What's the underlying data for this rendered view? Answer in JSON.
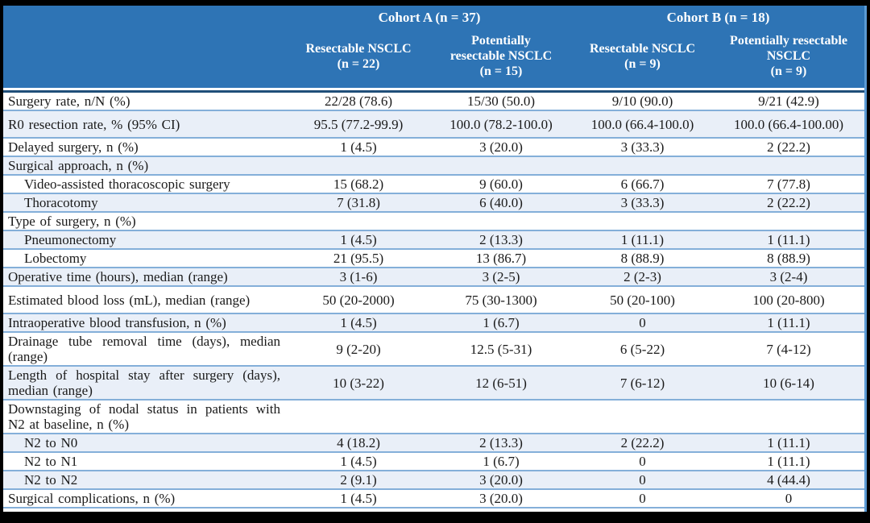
{
  "colors": {
    "frame": "#000000",
    "header_bg": "#2E74B5",
    "header_text": "#FFFFFF",
    "navy_rule": "#1F4E79",
    "divider": "#84AFD9",
    "stripe": "#E9EFF8",
    "row_white": "#FFFFFF",
    "body_text": "#1A1A1A",
    "right_border": "#5B9BD5"
  },
  "table": {
    "header": {
      "cohort_a": "Cohort A (n = 37)",
      "cohort_b": "Cohort B (n = 18)",
      "columns": [
        "Resectable NSCLC\n(n = 22)",
        "Potentially\nresectable NSCLC\n(n = 15)",
        "Resectable NSCLC\n(n = 9)",
        "Potentially resectable\nNSCLC\n(n = 9)"
      ]
    },
    "rows": [
      {
        "label": "Surgery rate, n/N (%)",
        "indent": false,
        "values": [
          "22/28 (78.6)",
          "15/30 (50.0)",
          "9/10 (90.0)",
          "9/21 (42.9)"
        ]
      },
      {
        "label": "R0 resection rate, % (95% CI)",
        "indent": false,
        "values": [
          "95.5 (77.2-99.9)",
          "100.0 (78.2-100.0)",
          "100.0 (66.4-100.0)",
          "100.0 (66.4-100.00)"
        ]
      },
      {
        "label": "Delayed surgery, n (%)",
        "indent": false,
        "values": [
          "1 (4.5)",
          "3 (20.0)",
          "3 (33.3)",
          "2 (22.2)"
        ]
      },
      {
        "label": "Surgical approach, n (%)",
        "indent": false,
        "values": [
          "",
          "",
          "",
          ""
        ]
      },
      {
        "label": "Video-assisted thoracoscopic surgery",
        "indent": true,
        "values": [
          "15 (68.2)",
          "9 (60.0)",
          "6 (66.7)",
          "7 (77.8)"
        ]
      },
      {
        "label": "Thoracotomy",
        "indent": true,
        "values": [
          "7 (31.8)",
          "6 (40.0)",
          "3 (33.3)",
          "2 (22.2)"
        ]
      },
      {
        "label": "Type of surgery, n (%)",
        "indent": false,
        "values": [
          "",
          "",
          "",
          ""
        ]
      },
      {
        "label": "Pneumonectomy",
        "indent": true,
        "values": [
          "1 (4.5)",
          "2 (13.3)",
          "1 (11.1)",
          "1 (11.1)"
        ]
      },
      {
        "label": "Lobectomy",
        "indent": true,
        "values": [
          "21 (95.5)",
          "13 (86.7)",
          "8 (88.9)",
          "8 (88.9)"
        ]
      },
      {
        "label": "Operative time (hours), median (range)",
        "indent": false,
        "values": [
          "3 (1-6)",
          "3 (2-5)",
          "2 (2-3)",
          "3 (2-4)"
        ]
      },
      {
        "label": "Estimated blood loss (mL), median (range)",
        "indent": false,
        "values": [
          "50 (20-2000)",
          "75 (30-1300)",
          "50 (20-100)",
          "100 (20-800)"
        ]
      },
      {
        "label": "Intraoperative blood transfusion, n (%)",
        "indent": false,
        "values": [
          "1 (4.5)",
          "1 (6.7)",
          "0",
          "1 (11.1)"
        ]
      },
      {
        "label": "Drainage tube removal time (days), median (range)",
        "indent": false,
        "values": [
          "9 (2-20)",
          "12.5 (5-31)",
          "6 (5-22)",
          "7 (4-12)"
        ]
      },
      {
        "label": "Length of hospital stay after surgery (days), median (range)",
        "indent": false,
        "values": [
          "10 (3-22)",
          "12 (6-51)",
          "7 (6-12)",
          "10 (6-14)"
        ]
      },
      {
        "label": "Downstaging of nodal status in patients with N2 at baseline, n (%)",
        "indent": false,
        "values": [
          "",
          "",
          "",
          ""
        ]
      },
      {
        "label": "N2 to N0",
        "indent": true,
        "values": [
          "4 (18.2)",
          "2 (13.3)",
          "2 (22.2)",
          "1 (11.1)"
        ]
      },
      {
        "label": "N2 to N1",
        "indent": true,
        "values": [
          "1 (4.5)",
          "1 (6.7)",
          "0",
          "1 (11.1)"
        ]
      },
      {
        "label": "N2 to N2",
        "indent": true,
        "values": [
          "2 (9.1)",
          "3 (20.0)",
          "0",
          "4 (44.4)"
        ]
      },
      {
        "label": "Surgical complications, n (%)",
        "indent": false,
        "values": [
          "1 (4.5)",
          "3 (20.0)",
          "0",
          "0"
        ]
      }
    ]
  }
}
